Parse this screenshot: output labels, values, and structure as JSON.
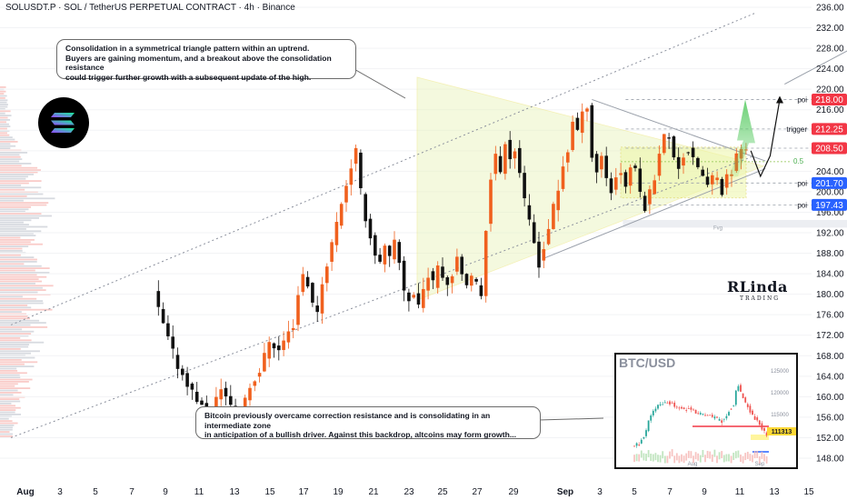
{
  "header": {
    "title": "SOLUSDT.P · SOL / TetherUS PERPETUAL CONTRACT · 4h · Binance"
  },
  "annotations": {
    "top_callout": [
      "Consolidation in a symmetrical triangle pattern within an uptrend.",
      "Buyers are gaining momentum, and a breakout above the consolidation resistance",
      "could trigger further growth with a subsequent update of the high."
    ],
    "bottom_callout": [
      "Bitcoin previously overcame correction resistance and is consolidating in an intermediate zone",
      "in anticipation of a bullish driver. Against this backdrop, altcoins may form growth..."
    ],
    "fibo_label": "0.5",
    "fvg_label": "Fvg"
  },
  "watermark": {
    "big": "RLinda",
    "small": "TRADING"
  },
  "colors": {
    "up": "#f0601e",
    "down": "#111111",
    "price_red": "#f23645",
    "price_blue": "#2962ff",
    "zone": "#e8f3b8",
    "arrow_green": "#5ccc66"
  },
  "chart_data": {
    "type": "candlestick",
    "symbol": "SOLUSDT.P",
    "timeframe": "4h",
    "y_axis": {
      "min": 148,
      "max": 236,
      "ticks": [
        148,
        152,
        156,
        160,
        164,
        168,
        172,
        176,
        180,
        184,
        188,
        192,
        196,
        200,
        204,
        208,
        212,
        216,
        220,
        224,
        228,
        232,
        236
      ]
    },
    "x_axis": {
      "labels": [
        "Aug",
        "3",
        "5",
        "7",
        "9",
        "11",
        "13",
        "15",
        "17",
        "19",
        "21",
        "23",
        "25",
        "27",
        "29",
        "Sep",
        "3",
        "5",
        "7",
        "9",
        "11",
        "13",
        "15"
      ]
    },
    "levels": [
      {
        "label": "poi",
        "price": "218.00",
        "value": 218.0,
        "color": "#f23645"
      },
      {
        "label": "trigger",
        "price": "212.25",
        "value": 212.25,
        "color": "#f23645"
      },
      {
        "label": "",
        "price": "208.50",
        "value": 208.5,
        "color": "#f23645"
      },
      {
        "label": "poi",
        "price": "201.70",
        "value": 201.7,
        "color": "#2962ff"
      },
      {
        "label": "poi",
        "price": "197.43",
        "value": 197.43,
        "color": "#2962ff"
      }
    ],
    "price_path": [
      [
        31,
        180
      ],
      [
        33,
        174
      ],
      [
        36,
        166
      ],
      [
        39,
        161
      ],
      [
        41,
        158
      ],
      [
        43,
        157
      ],
      [
        45,
        162
      ],
      [
        47,
        158
      ],
      [
        49,
        158
      ],
      [
        51,
        162
      ],
      [
        53,
        165
      ],
      [
        55,
        171
      ],
      [
        57,
        169
      ],
      [
        58,
        171
      ],
      [
        60,
        174
      ],
      [
        61,
        180
      ],
      [
        62,
        184
      ],
      [
        63,
        182
      ],
      [
        64,
        178
      ],
      [
        65,
        177
      ],
      [
        66,
        182
      ],
      [
        68,
        190
      ],
      [
        70,
        198
      ],
      [
        72,
        205
      ],
      [
        73,
        208
      ],
      [
        74,
        200
      ],
      [
        75,
        195
      ],
      [
        76,
        191
      ],
      [
        77,
        188
      ],
      [
        78,
        186
      ],
      [
        79,
        189
      ],
      [
        80,
        187
      ],
      [
        81,
        190
      ],
      [
        82,
        186
      ],
      [
        83,
        181
      ],
      [
        84,
        179
      ],
      [
        85,
        180
      ],
      [
        86,
        178
      ],
      [
        87,
        181
      ],
      [
        88,
        184
      ],
      [
        89,
        182
      ],
      [
        90,
        186
      ],
      [
        91,
        184
      ],
      [
        92,
        182
      ],
      [
        93,
        184
      ],
      [
        94,
        188
      ],
      [
        95,
        184
      ],
      [
        96,
        181
      ],
      [
        97,
        183
      ],
      [
        98,
        182
      ],
      [
        99,
        180
      ],
      [
        100,
        193
      ],
      [
        101,
        203
      ],
      [
        102,
        207
      ],
      [
        103,
        204
      ],
      [
        104,
        210
      ],
      [
        105,
        207
      ],
      [
        106,
        208
      ],
      [
        107,
        204
      ],
      [
        108,
        198
      ],
      [
        109,
        194
      ],
      [
        110,
        190
      ],
      [
        111,
        186
      ],
      [
        112,
        189
      ],
      [
        113,
        193
      ],
      [
        114,
        197
      ],
      [
        115,
        200
      ],
      [
        116,
        205
      ],
      [
        117,
        208
      ],
      [
        118,
        214
      ],
      [
        119,
        212
      ],
      [
        120,
        215
      ],
      [
        121,
        217
      ],
      [
        122,
        207
      ],
      [
        123,
        204
      ],
      [
        124,
        207
      ],
      [
        125,
        203
      ],
      [
        126,
        200
      ],
      [
        127,
        203
      ],
      [
        128,
        204
      ],
      [
        129,
        201
      ],
      [
        130,
        205
      ],
      [
        131,
        204
      ],
      [
        132,
        200
      ],
      [
        133,
        197
      ],
      [
        134,
        200
      ],
      [
        135,
        203
      ],
      [
        136,
        208
      ],
      [
        137,
        211
      ],
      [
        138,
        210
      ],
      [
        139,
        207
      ],
      [
        140,
        205
      ],
      [
        141,
        207
      ],
      [
        142,
        208
      ],
      [
        143,
        206
      ],
      [
        144,
        205
      ],
      [
        145,
        203
      ],
      [
        146,
        201
      ],
      [
        147,
        203
      ],
      [
        148,
        202
      ],
      [
        149,
        200
      ],
      [
        150,
        203
      ],
      [
        151,
        204
      ],
      [
        152,
        207
      ],
      [
        153,
        208.5
      ],
      [
        154,
        208
      ]
    ],
    "projection_path": [
      [
        154,
        208
      ],
      [
        156,
        203
      ],
      [
        158,
        207
      ],
      [
        160,
        218
      ]
    ],
    "projection_long": [
      [
        161,
        221
      ],
      [
        186,
        233.5
      ]
    ],
    "inset": {
      "title": "BTC/USD",
      "y_ticks": [
        "125000",
        "120000",
        "115000"
      ],
      "price_label": "111313",
      "x_labels": [
        "Aug",
        "Sep"
      ]
    }
  }
}
